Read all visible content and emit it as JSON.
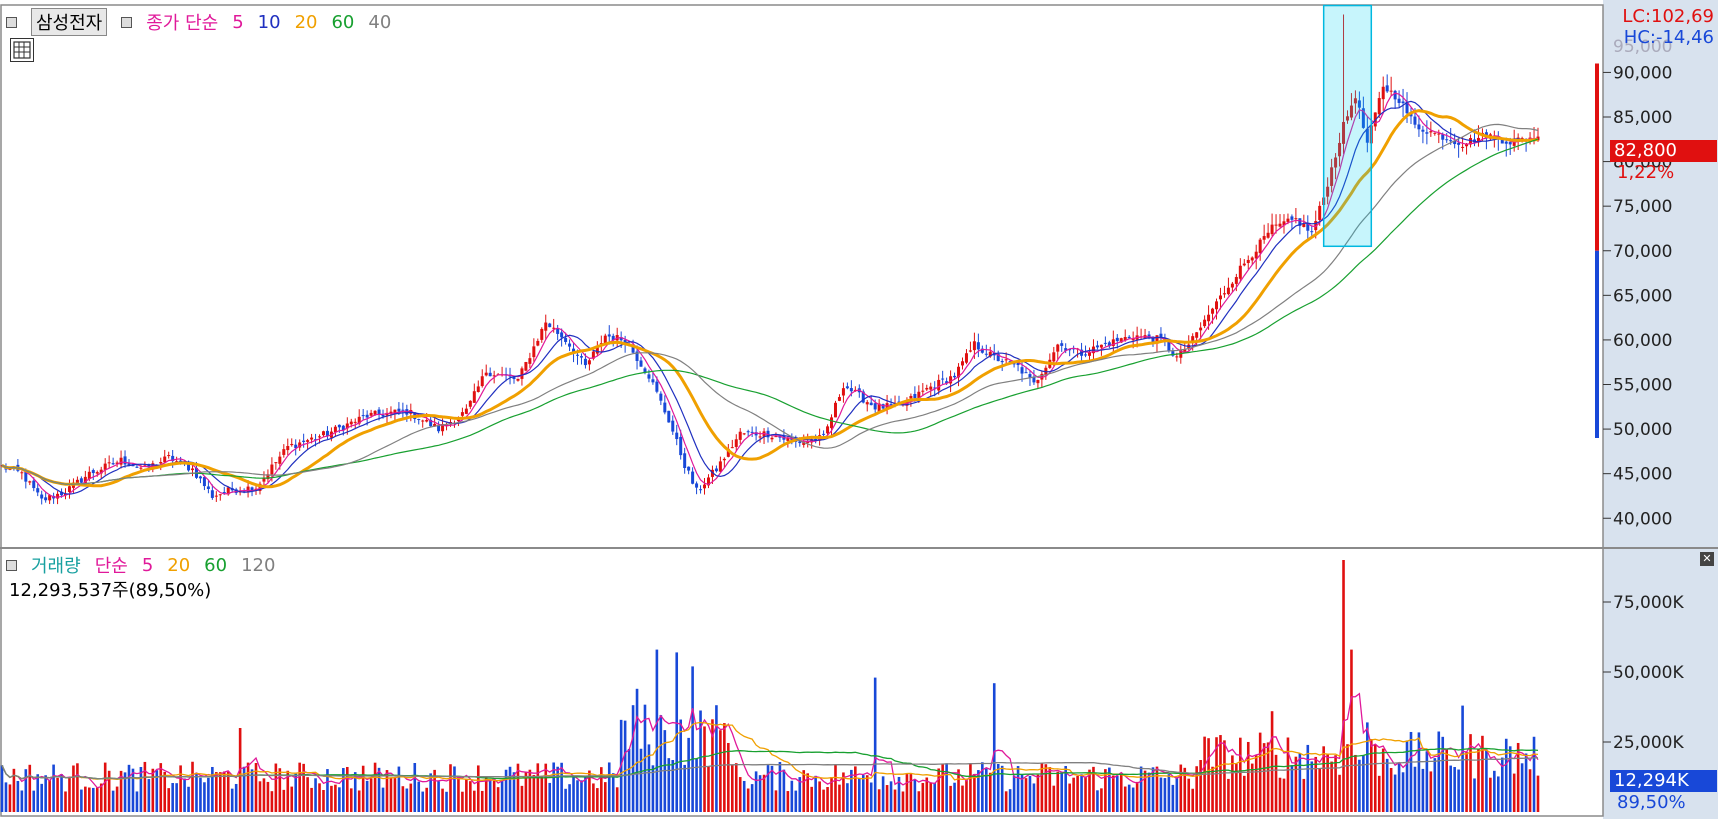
{
  "price_panel": {
    "stock_name": "삼성전자",
    "ma_label": "종가 단순",
    "periods": [
      "5",
      "10",
      "20",
      "60",
      "40"
    ],
    "period_colors": [
      "#e0199a",
      "#2030c0",
      "#f0a000",
      "#18a030",
      "#808080"
    ],
    "lc_label": "LC:102,69",
    "hc_label": "HC:-14,46",
    "current_price": "82,800",
    "current_change": "1,22%",
    "up_color": "#e01010",
    "down_color": "#1848d8",
    "right_axis_top_clipped": "95,000"
  },
  "volume_panel": {
    "label": "거래량",
    "ma_label": "단순",
    "periods": [
      "5",
      "20",
      "60",
      "120"
    ],
    "period_colors": [
      "#e0199a",
      "#f0a000",
      "#18a030",
      "#808080"
    ],
    "volume_readout": "12,293,537주(89,50%)",
    "current_volume": "12,294K",
    "current_volume_pct": "89,50%"
  },
  "chart_data": [
    {
      "type": "line",
      "title": "삼성전자",
      "subtitle": "종가 단순 5 10 20 60 40",
      "ylim": [
        37000,
        97000
      ],
      "yticks": [
        "40,000",
        "45,000",
        "50,000",
        "55,000",
        "60,000",
        "65,000",
        "70,000",
        "75,000",
        "80,000",
        "85,000",
        "90,000"
      ],
      "keypoints": [
        [
          0,
          45800
        ],
        [
          5,
          45000
        ],
        [
          10,
          42000
        ],
        [
          16,
          43000
        ],
        [
          22,
          45000
        ],
        [
          30,
          46500
        ],
        [
          36,
          45500
        ],
        [
          42,
          46800
        ],
        [
          48,
          45500
        ],
        [
          53,
          42500
        ],
        [
          58,
          43200
        ],
        [
          64,
          43500
        ],
        [
          72,
          48000
        ],
        [
          82,
          49500
        ],
        [
          92,
          51500
        ],
        [
          102,
          52000
        ],
        [
          110,
          50000
        ],
        [
          117,
          52000
        ],
        [
          122,
          56500
        ],
        [
          130,
          55500
        ],
        [
          137,
          62000
        ],
        [
          142,
          60000
        ],
        [
          147,
          57000
        ],
        [
          152,
          60500
        ],
        [
          157,
          60000
        ],
        [
          163,
          56000
        ],
        [
          168,
          51000
        ],
        [
          172,
          46000
        ],
        [
          175,
          43000
        ],
        [
          180,
          45500
        ],
        [
          186,
          49500
        ],
        [
          193,
          49500
        ],
        [
          200,
          48500
        ],
        [
          207,
          49000
        ],
        [
          212,
          55000
        ],
        [
          215,
          54000
        ],
        [
          220,
          52500
        ],
        [
          226,
          52500
        ],
        [
          233,
          54500
        ],
        [
          240,
          56000
        ],
        [
          245,
          59500
        ],
        [
          250,
          58000
        ],
        [
          256,
          57000
        ],
        [
          260,
          55000
        ],
        [
          266,
          59500
        ],
        [
          272,
          58500
        ],
        [
          278,
          59500
        ],
        [
          285,
          60500
        ],
        [
          292,
          60000
        ],
        [
          296,
          58000
        ],
        [
          300,
          60000
        ],
        [
          305,
          63500
        ],
        [
          312,
          68000
        ],
        [
          320,
          72500
        ],
        [
          326,
          73500
        ],
        [
          330,
          72000
        ],
        [
          333,
          76000
        ],
        [
          338,
          84000
        ],
        [
          341,
          87500
        ],
        [
          344,
          82000
        ],
        [
          348,
          88500
        ],
        [
          352,
          87000
        ],
        [
          356,
          84000
        ],
        [
          362,
          83000
        ],
        [
          368,
          82000
        ],
        [
          374,
          83000
        ],
        [
          380,
          82200
        ],
        [
          386,
          82800
        ]
      ],
      "ma_series": [
        {
          "name": "5",
          "period": 5,
          "color": "#e0199a"
        },
        {
          "name": "10",
          "period": 10,
          "color": "#2030c0"
        },
        {
          "name": "20",
          "period": 20,
          "color": "#f0a000"
        },
        {
          "name": "60",
          "period": 60,
          "color": "#18a030"
        },
        {
          "name": "40",
          "period": 40,
          "color": "#808080"
        }
      ],
      "highlight": {
        "x_from": 333,
        "x_to": 345,
        "y_from": 70500,
        "y_to": 97500
      }
    },
    {
      "type": "bar",
      "title": "거래량",
      "subtitle": "단순 5 20 60 120",
      "ylim": [
        0,
        90000
      ],
      "yticks": [
        "25,000K",
        "50,000K",
        "75,000K"
      ],
      "base_volume": 12000,
      "spikes": [
        [
          60,
          30000
        ],
        [
          160,
          44000
        ],
        [
          165,
          58000
        ],
        [
          170,
          57000
        ],
        [
          174,
          52000
        ],
        [
          220,
          48000
        ],
        [
          250,
          46000
        ],
        [
          320,
          36000
        ],
        [
          338,
          90000
        ],
        [
          340,
          58000
        ],
        [
          344,
          32000
        ],
        [
          368,
          38000
        ]
      ],
      "ma_series": [
        {
          "name": "5",
          "period": 5,
          "color": "#e0199a"
        },
        {
          "name": "20",
          "period": 20,
          "color": "#f0a000"
        },
        {
          "name": "60",
          "period": 60,
          "color": "#18a030"
        },
        {
          "name": "120",
          "period": 120,
          "color": "#808080"
        }
      ]
    }
  ]
}
